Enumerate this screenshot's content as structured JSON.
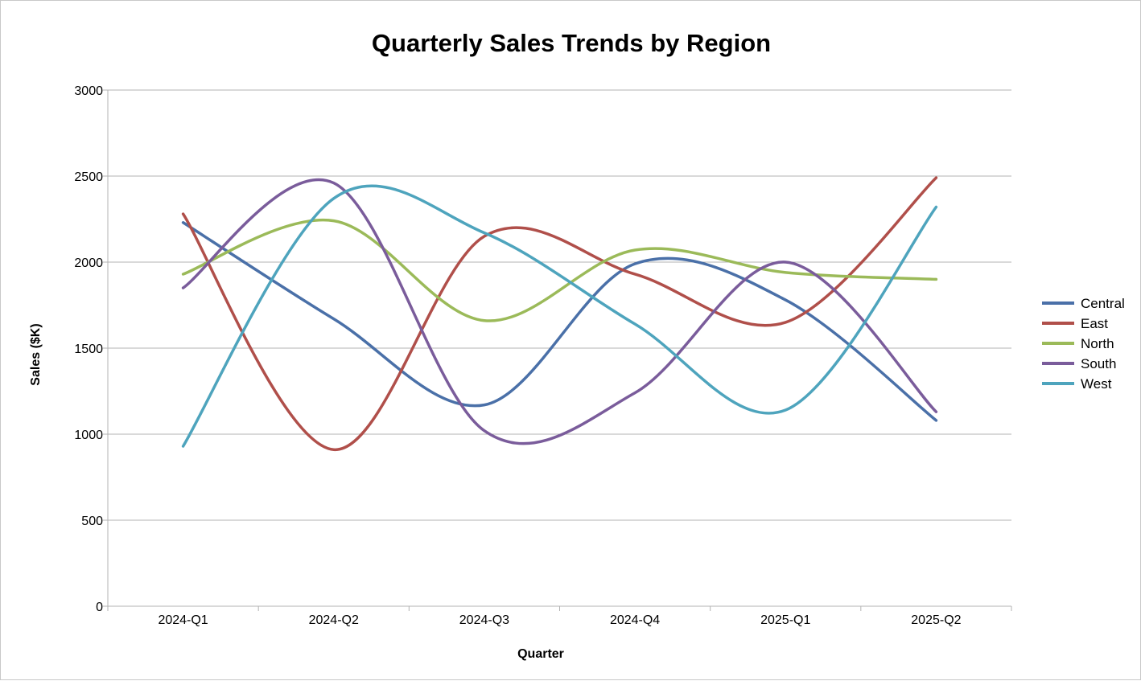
{
  "chart_data": {
    "type": "line",
    "title": "Quarterly Sales Trends by Region",
    "xlabel": "Quarter",
    "ylabel": "Sales ($K)",
    "categories": [
      "2024-Q1",
      "2024-Q2",
      "2024-Q3",
      "2024-Q4",
      "2025-Q1",
      "2025-Q2"
    ],
    "ylim": [
      0,
      3000
    ],
    "yticks": [
      0,
      500,
      1000,
      1500,
      2000,
      2500,
      3000
    ],
    "grid": true,
    "smooth": true,
    "legend_position": "right",
    "series": [
      {
        "name": "Central",
        "color": "#4a70a8",
        "values": [
          2230,
          1670,
          1170,
          1990,
          1780,
          1080
        ]
      },
      {
        "name": "East",
        "color": "#b04f4a",
        "values": [
          2280,
          910,
          2150,
          1930,
          1650,
          2490
        ]
      },
      {
        "name": "North",
        "color": "#9bba59",
        "values": [
          1930,
          2240,
          1660,
          2070,
          1940,
          1900
        ]
      },
      {
        "name": "South",
        "color": "#7a5c9b",
        "values": [
          1850,
          2460,
          1020,
          1240,
          2000,
          1130
        ]
      },
      {
        "name": "West",
        "color": "#4ea4bd",
        "values": [
          930,
          2370,
          2170,
          1640,
          1140,
          2320
        ]
      }
    ]
  }
}
